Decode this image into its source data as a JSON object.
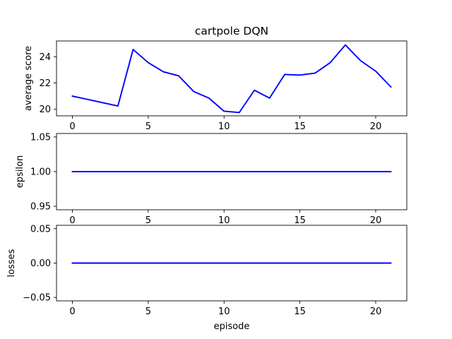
{
  "figure": {
    "title": "cartpole DQN"
  },
  "chart_data": [
    {
      "type": "line",
      "ylabel": "average score",
      "xlabel": "",
      "x": [
        0,
        1,
        2,
        3,
        4,
        5,
        6,
        7,
        8,
        9,
        10,
        11,
        12,
        13,
        14,
        15,
        16,
        17,
        18,
        19,
        20,
        21
      ],
      "series": [
        {
          "values": [
            21.0,
            20.75,
            20.5,
            20.25,
            24.55,
            23.55,
            22.85,
            22.55,
            21.35,
            20.85,
            19.85,
            19.75,
            21.45,
            20.85,
            22.65,
            22.6,
            22.75,
            23.55,
            24.9,
            23.7,
            22.9,
            21.7
          ],
          "color": "#0000ff"
        }
      ],
      "xlim": [
        -1.05,
        22.05
      ],
      "ylim": [
        19.5,
        25.2
      ],
      "xticks": [
        0,
        5,
        10,
        15,
        20
      ],
      "yticks": [
        20,
        22,
        24
      ],
      "xtick_labels": [
        "0",
        "5",
        "10",
        "15",
        "20"
      ],
      "ytick_labels": [
        "20",
        "22",
        "24"
      ],
      "grid": false
    },
    {
      "type": "line",
      "ylabel": "epsilon",
      "xlabel": "",
      "x": [
        0,
        1,
        2,
        3,
        4,
        5,
        6,
        7,
        8,
        9,
        10,
        11,
        12,
        13,
        14,
        15,
        16,
        17,
        18,
        19,
        20,
        21
      ],
      "series": [
        {
          "values": [
            1,
            1,
            1,
            1,
            1,
            1,
            1,
            1,
            1,
            1,
            1,
            1,
            1,
            1,
            1,
            1,
            1,
            1,
            1,
            1,
            1,
            1
          ],
          "color": "#0000ff"
        }
      ],
      "xlim": [
        -1.05,
        22.05
      ],
      "ylim": [
        0.945,
        1.055
      ],
      "xticks": [
        0,
        5,
        10,
        15,
        20
      ],
      "yticks": [
        0.95,
        1.0,
        1.05
      ],
      "xtick_labels": [
        "0",
        "5",
        "10",
        "15",
        "20"
      ],
      "ytick_labels": [
        "0.95",
        "1.00",
        "1.05"
      ],
      "grid": false
    },
    {
      "type": "line",
      "ylabel": "losses",
      "xlabel": "episode",
      "x": [
        0,
        1,
        2,
        3,
        4,
        5,
        6,
        7,
        8,
        9,
        10,
        11,
        12,
        13,
        14,
        15,
        16,
        17,
        18,
        19,
        20,
        21
      ],
      "series": [
        {
          "values": [
            0,
            0,
            0,
            0,
            0,
            0,
            0,
            0,
            0,
            0,
            0,
            0,
            0,
            0,
            0,
            0,
            0,
            0,
            0,
            0,
            0,
            0
          ],
          "color": "#0000ff"
        }
      ],
      "xlim": [
        -1.05,
        22.05
      ],
      "ylim": [
        -0.055,
        0.055
      ],
      "xticks": [
        0,
        5,
        10,
        15,
        20
      ],
      "yticks": [
        -0.05,
        0.0,
        0.05
      ],
      "xtick_labels": [
        "0",
        "5",
        "10",
        "15",
        "20"
      ],
      "ytick_labels": [
        "−0.05",
        "0.00",
        "0.05"
      ],
      "grid": false
    }
  ]
}
